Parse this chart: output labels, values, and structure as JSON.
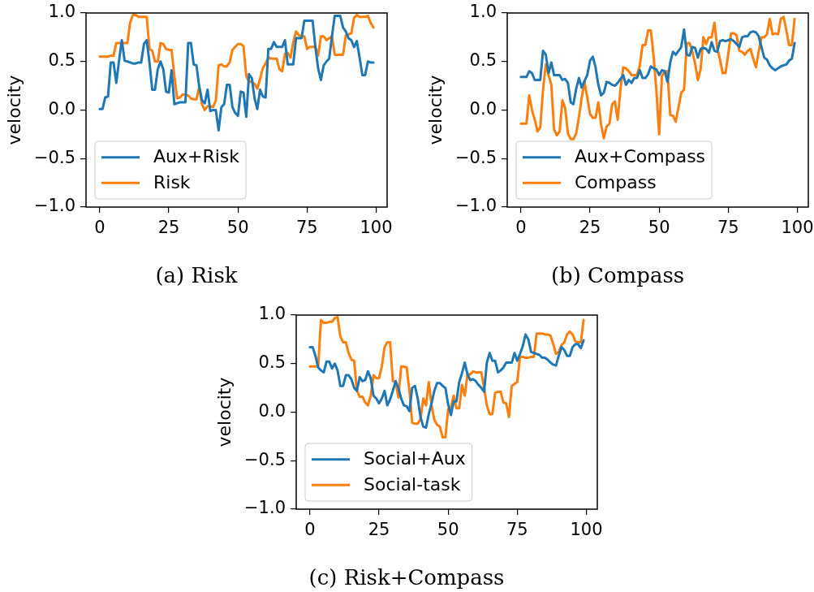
{
  "chart_data": [
    {
      "type": "line",
      "title": "(a) Risk",
      "ylabel": "velocity",
      "legend": "bottom left",
      "x": [
        0,
        1,
        2,
        3,
        4,
        5,
        6,
        7,
        8,
        9,
        10,
        11,
        12,
        13,
        14,
        15,
        16,
        17,
        18,
        19,
        20,
        21,
        22,
        23,
        24,
        25,
        26,
        27,
        28,
        29,
        30,
        31,
        32,
        33,
        34,
        35,
        36,
        37,
        38,
        39,
        40,
        41,
        42,
        43,
        44,
        45,
        46,
        47,
        48,
        49,
        50,
        51,
        52,
        53,
        54,
        55,
        56,
        57,
        58,
        59,
        60,
        61,
        62,
        63,
        64,
        65,
        66,
        67,
        68,
        69,
        70,
        71,
        72,
        73,
        74,
        75,
        76,
        77,
        78,
        79,
        80,
        81,
        82,
        83,
        84,
        85,
        86,
        87,
        88,
        89,
        90,
        91,
        92,
        93,
        94,
        95,
        96,
        97,
        98,
        99
      ],
      "xlim": [
        -4.95,
        103.95
      ],
      "xticks": [
        0,
        25,
        50,
        75,
        100
      ],
      "ylim": [
        -1,
        1
      ],
      "yticks": [
        {
          "value": -1,
          "label": "−1.0"
        },
        {
          "value": -0.5,
          "label": "−0.5"
        },
        {
          "value": 0,
          "label": "0.0"
        },
        {
          "value": 0.5,
          "label": "0.5"
        },
        {
          "value": 1,
          "label": "1.0"
        }
      ],
      "series": [
        {
          "name": "Aux+Risk",
          "color": "#1f77b4",
          "values": [
            0.01,
            0.01,
            0.13,
            0.14,
            0.49,
            0.49,
            0.28,
            0.51,
            0.72,
            0.51,
            0.5,
            0.49,
            0.48,
            0.48,
            0.49,
            0.49,
            0.68,
            0.72,
            0.49,
            0.21,
            0.21,
            0.42,
            0.5,
            0.42,
            0.19,
            0.18,
            0.41,
            0.06,
            0.07,
            0.08,
            0.08,
            0.08,
            0.69,
            0.69,
            0.47,
            0.46,
            0.24,
            0.1,
            0.07,
            0.21,
            -0.01,
            0.0,
            0.0,
            -0.21,
            0.03,
            0.06,
            0.26,
            0.26,
            0.03,
            -0.03,
            -0.06,
            0.19,
            0.18,
            -0.07,
            0.37,
            0.33,
            0.12,
            0.01,
            0.21,
            0.14,
            0.13,
            0.63,
            0.63,
            0.7,
            0.65,
            0.65,
            0.65,
            0.72,
            0.47,
            0.47,
            0.47,
            0.74,
            0.74,
            0.74,
            0.92,
            0.92,
            0.92,
            0.92,
            0.65,
            0.43,
            0.31,
            0.46,
            0.5,
            0.53,
            0.76,
            0.97,
            0.97,
            0.97,
            0.85,
            0.81,
            0.74,
            0.72,
            0.65,
            0.71,
            0.54,
            0.36,
            0.36,
            0.5,
            0.49,
            0.49
          ]
        },
        {
          "name": "Risk",
          "color": "#ff7f0e",
          "values": [
            0.55,
            0.55,
            0.55,
            0.55,
            0.56,
            0.56,
            0.69,
            0.69,
            0.69,
            0.69,
            0.69,
            0.9,
            0.98,
            0.98,
            0.96,
            0.96,
            0.96,
            0.96,
            0.63,
            0.61,
            0.5,
            0.5,
            0.69,
            0.68,
            0.63,
            0.62,
            0.62,
            0.35,
            0.12,
            0.13,
            0.16,
            0.16,
            0.15,
            0.12,
            0.11,
            0.11,
            0.24,
            0.06,
            0.0,
            0.04,
            0.04,
            0.03,
            0.1,
            0.46,
            0.47,
            0.45,
            0.45,
            0.49,
            0.62,
            0.65,
            0.68,
            0.68,
            0.66,
            0.35,
            0.29,
            0.29,
            0.27,
            0.22,
            0.32,
            0.43,
            0.48,
            0.54,
            0.53,
            0.53,
            0.53,
            0.42,
            0.4,
            0.58,
            0.59,
            0.54,
            0.7,
            0.81,
            0.77,
            0.76,
            0.76,
            0.63,
            0.65,
            0.65,
            0.65,
            0.56,
            0.76,
            0.76,
            0.72,
            0.74,
            0.76,
            0.57,
            0.57,
            0.57,
            0.57,
            0.77,
            0.78,
            0.79,
            0.95,
            0.98,
            0.96,
            0.96,
            0.96,
            0.97,
            0.9,
            0.85
          ]
        }
      ]
    },
    {
      "type": "line",
      "title": "(b) Compass",
      "ylabel": "velocity",
      "legend": "bottom left",
      "x": [
        0,
        1,
        2,
        3,
        4,
        5,
        6,
        7,
        8,
        9,
        10,
        11,
        12,
        13,
        14,
        15,
        16,
        17,
        18,
        19,
        20,
        21,
        22,
        23,
        24,
        25,
        26,
        27,
        28,
        29,
        30,
        31,
        32,
        33,
        34,
        35,
        36,
        37,
        38,
        39,
        40,
        41,
        42,
        43,
        44,
        45,
        46,
        47,
        48,
        49,
        50,
        51,
        52,
        53,
        54,
        55,
        56,
        57,
        58,
        59,
        60,
        61,
        62,
        63,
        64,
        65,
        66,
        67,
        68,
        69,
        70,
        71,
        72,
        73,
        74,
        75,
        76,
        77,
        78,
        79,
        80,
        81,
        82,
        83,
        84,
        85,
        86,
        87,
        88,
        89,
        90,
        91,
        92,
        93,
        94,
        95,
        96,
        97,
        98,
        99
      ],
      "xlim": [
        -4.95,
        103.95
      ],
      "xticks": [
        0,
        25,
        50,
        75,
        100
      ],
      "ylim": [
        -1,
        1
      ],
      "yticks": [
        {
          "value": -1,
          "label": "−1.0"
        },
        {
          "value": -0.5,
          "label": "−0.5"
        },
        {
          "value": 0,
          "label": "0.0"
        },
        {
          "value": 0.5,
          "label": "0.5"
        },
        {
          "value": 1,
          "label": "1.0"
        }
      ],
      "series": [
        {
          "name": "Aux+Compass",
          "color": "#1f77b4",
          "values": [
            0.34,
            0.34,
            0.34,
            0.4,
            0.38,
            0.31,
            0.31,
            0.31,
            0.61,
            0.57,
            0.38,
            0.49,
            0.36,
            0.36,
            0.36,
            0.31,
            0.32,
            0.28,
            0.08,
            0.06,
            0.22,
            0.33,
            0.23,
            0.3,
            0.36,
            0.51,
            0.55,
            0.44,
            0.26,
            0.15,
            0.18,
            0.29,
            0.28,
            0.26,
            0.25,
            0.28,
            0.32,
            0.36,
            0.26,
            0.31,
            0.28,
            0.33,
            0.33,
            0.41,
            0.33,
            0.33,
            0.37,
            0.45,
            0.43,
            0.42,
            0.36,
            0.41,
            0.4,
            0.29,
            0.49,
            0.6,
            0.57,
            0.61,
            0.65,
            0.83,
            0.57,
            0.56,
            0.65,
            0.64,
            0.54,
            0.63,
            0.64,
            0.63,
            0.59,
            0.7,
            0.61,
            0.6,
            0.71,
            0.72,
            0.71,
            0.72,
            0.73,
            0.71,
            0.68,
            0.65,
            0.75,
            0.76,
            0.76,
            0.8,
            0.81,
            0.8,
            0.76,
            0.65,
            0.54,
            0.52,
            0.46,
            0.43,
            0.41,
            0.43,
            0.45,
            0.46,
            0.47,
            0.51,
            0.53,
            0.69
          ]
        },
        {
          "name": "Compass",
          "color": "#ff7f0e",
          "values": [
            -0.14,
            -0.14,
            -0.14,
            0.15,
            0.0,
            -0.1,
            -0.22,
            -0.18,
            0.21,
            0.47,
            0.36,
            0.26,
            -0.2,
            -0.26,
            -0.22,
            0.1,
            0.02,
            -0.24,
            -0.3,
            -0.3,
            -0.24,
            -0.07,
            0.13,
            0.29,
            0.13,
            -0.04,
            -0.08,
            -0.08,
            0.08,
            -0.15,
            -0.29,
            -0.17,
            -0.14,
            0.06,
            0.09,
            -0.1,
            0.21,
            0.44,
            0.43,
            0.4,
            0.36,
            0.36,
            0.36,
            0.46,
            0.67,
            0.67,
            0.82,
            0.82,
            0.55,
            0.2,
            -0.25,
            0.35,
            0.4,
            0.4,
            -0.05,
            -0.06,
            -0.12,
            0.03,
            0.18,
            0.21,
            0.69,
            0.69,
            0.6,
            0.48,
            0.31,
            0.42,
            0.75,
            0.68,
            0.75,
            0.75,
            0.9,
            0.64,
            0.52,
            0.38,
            0.38,
            0.58,
            0.79,
            0.79,
            0.77,
            0.61,
            0.6,
            0.57,
            0.61,
            0.63,
            0.53,
            0.44,
            0.6,
            0.75,
            0.75,
            0.78,
            0.94,
            0.78,
            0.79,
            0.78,
            0.94,
            0.96,
            0.82,
            0.67,
            0.67,
            0.94
          ]
        }
      ]
    },
    {
      "type": "line",
      "title": "(c) Risk+Compass",
      "ylabel": "velocity",
      "legend": "bottom left",
      "x": [
        0,
        1,
        2,
        3,
        4,
        5,
        6,
        7,
        8,
        9,
        10,
        11,
        12,
        13,
        14,
        15,
        16,
        17,
        18,
        19,
        20,
        21,
        22,
        23,
        24,
        25,
        26,
        27,
        28,
        29,
        30,
        31,
        32,
        33,
        34,
        35,
        36,
        37,
        38,
        39,
        40,
        41,
        42,
        43,
        44,
        45,
        46,
        47,
        48,
        49,
        50,
        51,
        52,
        53,
        54,
        55,
        56,
        57,
        58,
        59,
        60,
        61,
        62,
        63,
        64,
        65,
        66,
        67,
        68,
        69,
        70,
        71,
        72,
        73,
        74,
        75,
        76,
        77,
        78,
        79,
        80,
        81,
        82,
        83,
        84,
        85,
        86,
        87,
        88,
        89,
        90,
        91,
        92,
        93,
        94,
        95,
        96,
        97,
        98,
        99
      ],
      "xlim": [
        -4.95,
        103.95
      ],
      "xticks": [
        0,
        25,
        50,
        75,
        100
      ],
      "ylim": [
        -1,
        1
      ],
      "yticks": [
        {
          "value": -1,
          "label": "−1.0"
        },
        {
          "value": -0.5,
          "label": "−0.5"
        },
        {
          "value": 0,
          "label": "0.0"
        },
        {
          "value": 0.5,
          "label": "0.5"
        },
        {
          "value": 1,
          "label": "1.0"
        }
      ],
      "series": [
        {
          "name": "Social+Aux",
          "color": "#1f77b4",
          "values": [
            0.67,
            0.67,
            0.58,
            0.46,
            0.43,
            0.41,
            0.52,
            0.52,
            0.45,
            0.5,
            0.43,
            0.27,
            0.27,
            0.38,
            0.38,
            0.34,
            0.25,
            0.22,
            0.36,
            0.32,
            0.33,
            0.42,
            0.35,
            0.17,
            0.14,
            0.09,
            0.14,
            0.22,
            0.07,
            0.13,
            0.22,
            0.32,
            0.25,
            0.14,
            0.07,
            0.06,
            0.01,
            0.25,
            0.27,
            0.14,
            -0.05,
            -0.15,
            -0.16,
            -0.02,
            0.09,
            0.22,
            0.3,
            0.3,
            0.27,
            0.25,
            0.08,
            -0.03,
            0.11,
            0.11,
            0.31,
            0.4,
            0.51,
            0.39,
            0.33,
            0.34,
            0.32,
            0.28,
            0.25,
            0.21,
            0.51,
            0.61,
            0.53,
            0.53,
            0.41,
            0.43,
            0.46,
            0.51,
            0.51,
            0.51,
            0.61,
            0.53,
            0.6,
            0.68,
            0.8,
            0.75,
            0.62,
            0.61,
            0.6,
            0.59,
            0.56,
            0.56,
            0.54,
            0.51,
            0.49,
            0.48,
            0.58,
            0.67,
            0.64,
            0.58,
            0.58,
            0.67,
            0.7,
            0.7,
            0.66,
            0.74
          ]
        },
        {
          "name": "Social-task",
          "color": "#ff7f0e",
          "values": [
            0.47,
            0.47,
            0.47,
            0.47,
            0.95,
            0.92,
            0.92,
            0.93,
            0.93,
            0.97,
            0.98,
            0.78,
            0.72,
            0.72,
            0.61,
            0.54,
            0.53,
            0.22,
            0.16,
            0.16,
            0.1,
            0.07,
            0.17,
            0.38,
            0.35,
            0.35,
            0.47,
            0.67,
            0.72,
            0.72,
            0.32,
            0.31,
            0.15,
            0.47,
            0.47,
            0.46,
            0.22,
            -0.11,
            -0.12,
            -0.12,
            -0.07,
            0.14,
            0.07,
            0.31,
            0.07,
            -0.08,
            -0.13,
            -0.15,
            -0.26,
            -0.26,
            0.03,
            0.05,
            0.17,
            0.04,
            0.04,
            0.28,
            0.17,
            0.39,
            0.39,
            0.42,
            0.41,
            0.41,
            0.41,
            0.25,
            0.07,
            -0.02,
            -0.02,
            0.2,
            0.21,
            0.21,
            0.1,
            0.09,
            -0.05,
            0.27,
            0.29,
            0.31,
            0.57,
            0.57,
            0.56,
            0.56,
            0.57,
            0.57,
            0.81,
            0.81,
            0.81,
            0.8,
            0.8,
            0.79,
            0.7,
            0.6,
            0.62,
            0.69,
            0.72,
            0.8,
            0.83,
            0.8,
            0.73,
            0.72,
            0.72,
            0.95
          ]
        }
      ]
    }
  ]
}
